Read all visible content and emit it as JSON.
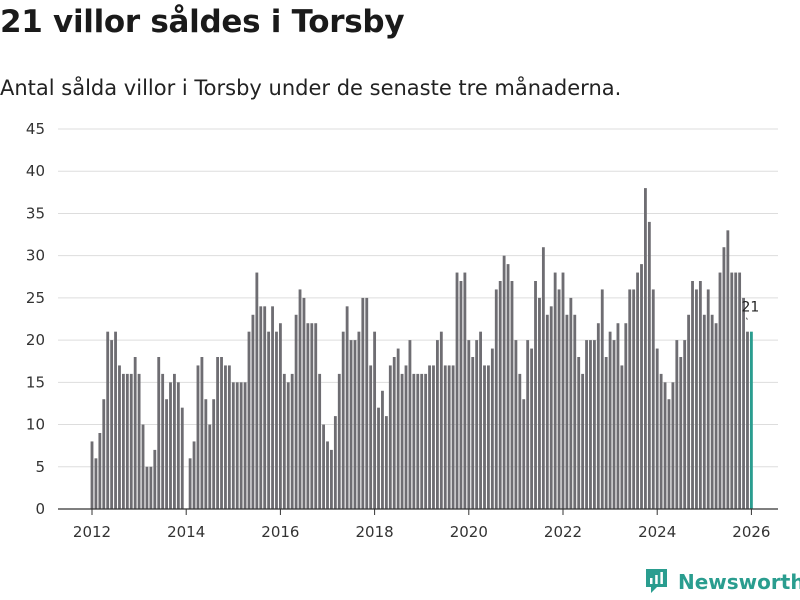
{
  "title": "21 villor såldes i Torsby",
  "subtitle": "Antal sålda villor i Torsby under de senaste tre månaderna.",
  "brand": {
    "name": "Newsworthy",
    "icon": "newsworthy-logo-icon"
  },
  "colors": {
    "bar": "#6e6d72",
    "highlight": "#2a9d8f",
    "grid": "#dddddd",
    "axis": "#333333"
  },
  "chart_data": {
    "type": "bar",
    "title": "21 villor såldes i Torsby",
    "xlabel": "",
    "ylabel": "",
    "ylim": [
      0,
      45
    ],
    "yticks": [
      0,
      5,
      10,
      15,
      20,
      25,
      30,
      35,
      40,
      45
    ],
    "xticks": [
      "2012",
      "2014",
      "2016",
      "2018",
      "2020",
      "2022",
      "2024",
      "2026"
    ],
    "start_month": "2012-01",
    "grid": true,
    "highlight_last": true,
    "last_label": "21",
    "values": [
      8,
      6,
      9,
      13,
      21,
      20,
      21,
      17,
      16,
      16,
      16,
      18,
      16,
      10,
      5,
      5,
      7,
      18,
      16,
      13,
      15,
      16,
      15,
      12,
      0,
      6,
      8,
      17,
      18,
      13,
      10,
      13,
      18,
      18,
      17,
      17,
      15,
      15,
      15,
      15,
      21,
      23,
      28,
      24,
      24,
      21,
      24,
      21,
      22,
      16,
      15,
      16,
      23,
      26,
      25,
      22,
      22,
      22,
      16,
      10,
      8,
      7,
      11,
      16,
      21,
      24,
      20,
      20,
      21,
      25,
      25,
      17,
      21,
      12,
      14,
      11,
      17,
      18,
      19,
      16,
      17,
      20,
      16,
      16,
      16,
      16,
      17,
      17,
      20,
      21,
      17,
      17,
      17,
      28,
      27,
      28,
      20,
      18,
      20,
      21,
      17,
      17,
      19,
      26,
      27,
      30,
      29,
      27,
      20,
      16,
      13,
      20,
      19,
      27,
      25,
      31,
      23,
      24,
      28,
      26,
      28,
      23,
      25,
      23,
      18,
      16,
      20,
      20,
      20,
      22,
      26,
      18,
      21,
      20,
      22,
      17,
      22,
      26,
      26,
      28,
      29,
      38,
      34,
      26,
      19,
      16,
      15,
      13,
      15,
      20,
      18,
      20,
      23,
      27,
      26,
      27,
      23,
      26,
      23,
      22,
      28,
      31,
      33,
      28,
      28,
      28,
      25,
      21,
      21
    ]
  }
}
